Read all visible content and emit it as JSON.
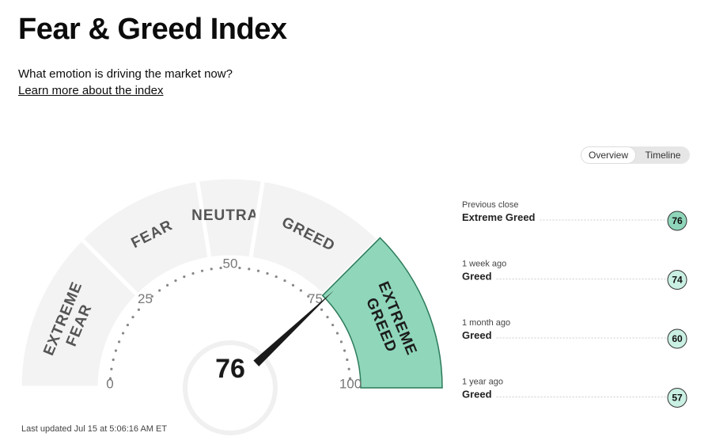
{
  "header": {
    "title": "Fear & Greed Index",
    "subtitle": "What emotion is driving the market now?",
    "link": "Learn more about the index"
  },
  "tabs": [
    "Overview",
    "Timeline"
  ],
  "active_tab": 0,
  "gauge": {
    "value": 76,
    "ticks": [
      0,
      25,
      50,
      75,
      100
    ],
    "segments": [
      {
        "label": [
          "EXTREME",
          "FEAR"
        ],
        "range": [
          0,
          25
        ]
      },
      {
        "label": [
          "FEAR"
        ],
        "range": [
          25,
          45
        ]
      },
      {
        "label": [
          "NEUTRAL"
        ],
        "range": [
          45,
          55
        ]
      },
      {
        "label": [
          "GREED"
        ],
        "range": [
          55,
          75
        ]
      },
      {
        "label": [
          "EXTREME",
          "GREED"
        ],
        "range": [
          75,
          100
        ]
      }
    ]
  },
  "history": [
    {
      "label": "Previous close",
      "status": "Extreme Greed",
      "value": 76,
      "color": "#8fd6bb"
    },
    {
      "label": "1 week ago",
      "status": "Greed",
      "value": 74,
      "color": "#c9f0e2"
    },
    {
      "label": "1 month ago",
      "status": "Greed",
      "value": 60,
      "color": "#c9f0e2"
    },
    {
      "label": "1 year ago",
      "status": "Greed",
      "value": 57,
      "color": "#c9f0e2"
    }
  ],
  "footer": "Last updated Jul 15 at 5:06:16 AM ET"
}
